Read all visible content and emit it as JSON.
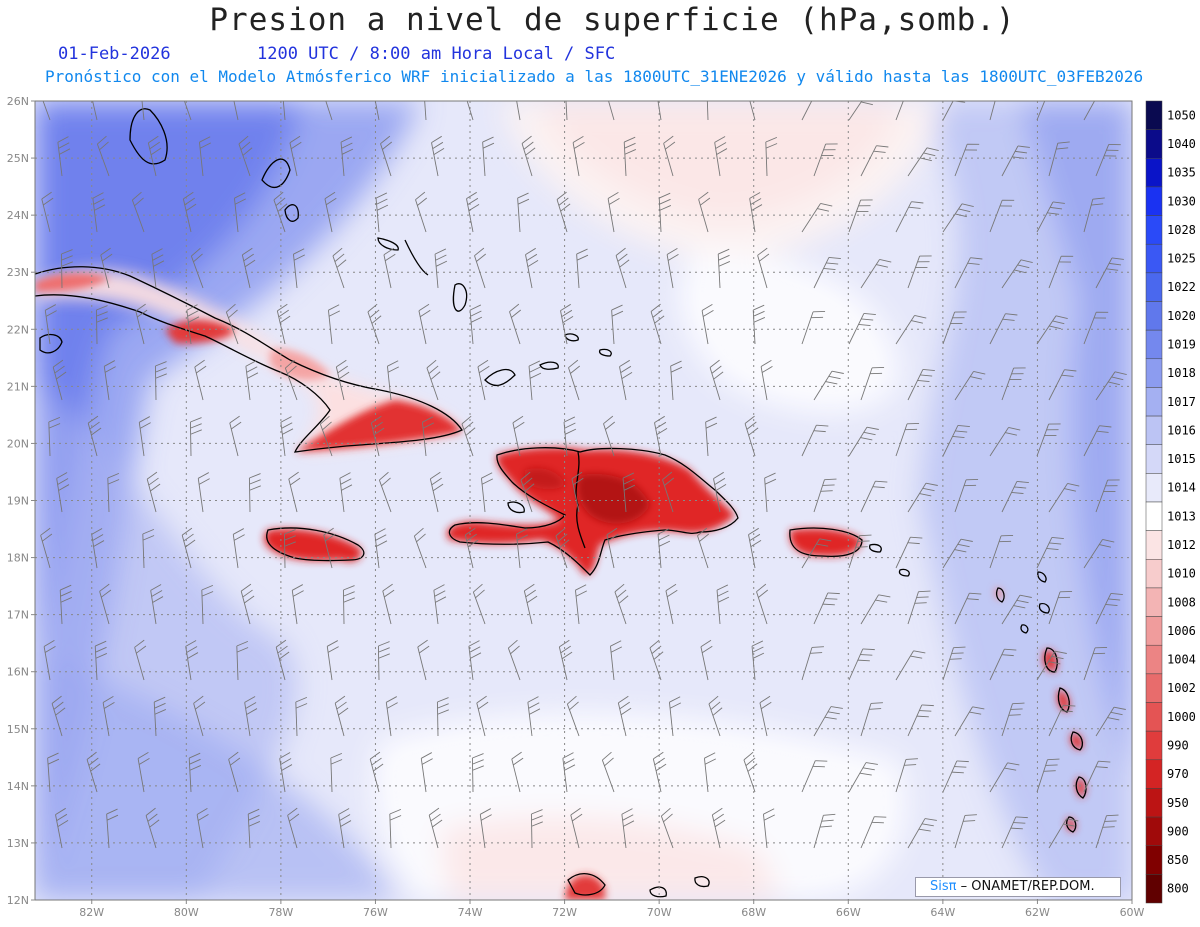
{
  "header": {
    "title": "Presion a nivel de superficie (hPa,somb.)",
    "date": "01-Feb-2026",
    "time_info": "1200 UTC / 8:00 am Hora Local / SFC",
    "subtitle": "Pronóstico con el Modelo Atmósferico WRF inicializado a las 1800UTC_31ENE2026 y válido hasta las  1800UTC_03FEB2026"
  },
  "map": {
    "lat_range": [
      12,
      26
    ],
    "lon_range": [
      -83.2,
      -60
    ],
    "lat_ticks": [
      "26N",
      "25N",
      "24N",
      "23N",
      "22N",
      "21N",
      "20N",
      "19N",
      "18N",
      "17N",
      "16N",
      "15N",
      "14N",
      "13N",
      "12N"
    ],
    "lon_ticks": [
      "82W",
      "80W",
      "78W",
      "76W",
      "74W",
      "72W",
      "70W",
      "68W",
      "66W",
      "64W",
      "62W",
      "60W"
    ],
    "grid": true,
    "land_color": "#e23030",
    "ocean_base_color": "#e8e8f8",
    "coastline_color": "#000000",
    "barb_color": "#777777"
  },
  "colorbar": {
    "levels": [
      "1050",
      "1040",
      "1035",
      "1030",
      "1028",
      "1025",
      "1022",
      "1020",
      "1019",
      "1018",
      "1017",
      "1016",
      "1015",
      "1014",
      "1013",
      "1012",
      "1010",
      "1008",
      "1006",
      "1004",
      "1002",
      "1000",
      "990",
      "970",
      "950",
      "900",
      "850",
      "800"
    ],
    "colors": [
      "#0a0a50",
      "#0b0b8a",
      "#0a14c8",
      "#1a32f2",
      "#2a4af8",
      "#3a58f4",
      "#4a68ee",
      "#6078ec",
      "#7488ee",
      "#8c9cf0",
      "#a4b0f2",
      "#bcc4f4",
      "#d4d8f8",
      "#e8eafa",
      "#ffffff",
      "#fbe4e4",
      "#f7cccc",
      "#f3b4b4",
      "#f09c9c",
      "#ec8484",
      "#e86c6c",
      "#e45454",
      "#e03c3c",
      "#d42424",
      "#bc1414",
      "#a00a0a",
      "#800000",
      "#600000"
    ]
  },
  "credit": {
    "brand": "Sisπ",
    "text": "– ONAMET/REP.DOM."
  }
}
